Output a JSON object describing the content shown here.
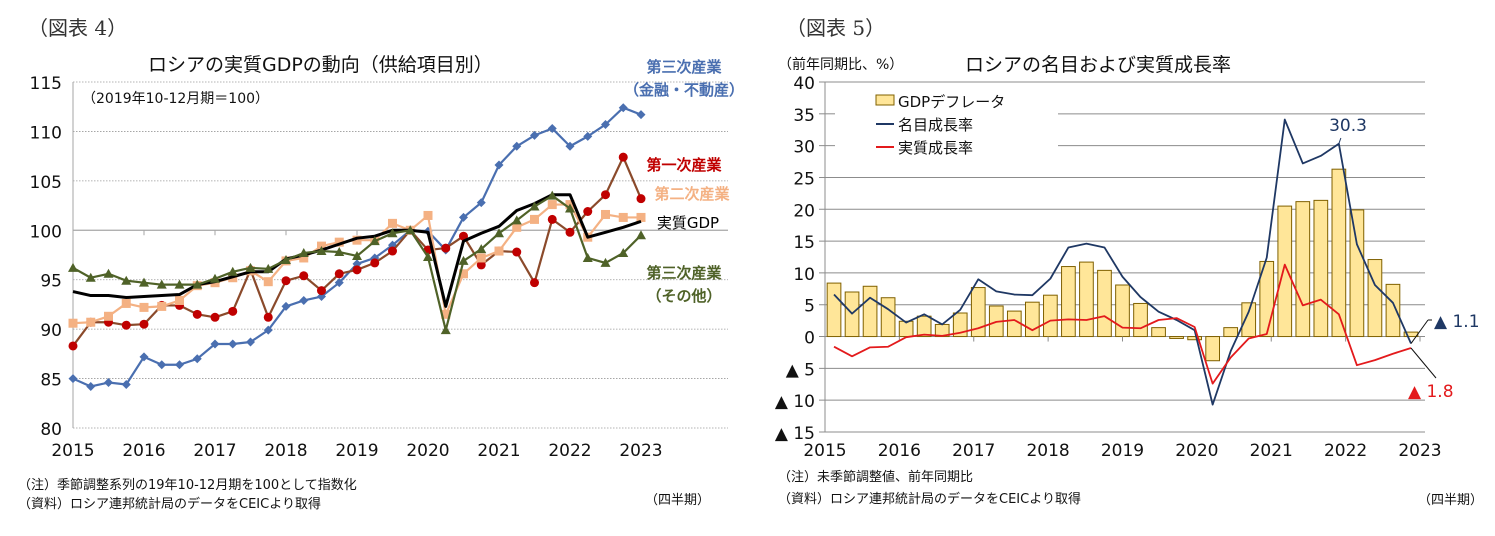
{
  "figures": [
    {
      "label": "（図表 4）",
      "notes": [
        "（注）季節調整系列の19年10-12月期を100として指数化",
        "（資料）ロシア連邦統計局のデータをCEICより取得"
      ],
      "period_label": "（四半期）"
    },
    {
      "label": "（図表 5）",
      "notes": [
        "（注）未季節調整値、前年同期比",
        "（資料）ロシア連邦統計局のデータをCEICより取得"
      ],
      "period_label": "（四半期）"
    }
  ],
  "chart_data": [
    {
      "type": "line",
      "title": "ロシアの実質GDPの動向（供給項目別）",
      "subtitle": "（2019年10-12月期＝100）",
      "xlabel": "",
      "ylabel": "",
      "ylim": [
        80,
        115
      ],
      "yticks": [
        80,
        85,
        90,
        95,
        100,
        105,
        110,
        115
      ],
      "xticks": [
        "2015",
        "2016",
        "2017",
        "2018",
        "2019",
        "2020",
        "2021",
        "2022",
        "2023"
      ],
      "x_start": "2015Q1",
      "x_end": "2023Q1",
      "grid": true,
      "series": [
        {
          "name": "第三次産業（金融・不動産）",
          "label_lines": [
            "第三次産業",
            "（金融・不動産）"
          ],
          "color": "#4a6fb0",
          "marker": "diamond",
          "values": [
            85.0,
            84.2,
            84.6,
            84.4,
            87.2,
            86.4,
            86.4,
            87.0,
            88.5,
            88.5,
            88.7,
            89.9,
            92.3,
            92.9,
            93.3,
            94.7,
            96.6,
            97.2,
            98.5,
            100.0,
            99.9,
            98.0,
            101.3,
            102.8,
            106.6,
            108.5,
            109.6,
            110.3,
            108.5,
            109.5,
            110.7,
            112.4,
            111.7
          ]
        },
        {
          "name": "第一次産業",
          "label_lines": [
            "第一次産業"
          ],
          "color": "#c00000",
          "line_color": "#8b4a2b",
          "marker": "circle",
          "values": [
            88.3,
            90.7,
            90.7,
            90.4,
            90.5,
            92.4,
            92.4,
            91.5,
            91.2,
            91.8,
            96.0,
            91.2,
            94.9,
            95.4,
            93.9,
            95.6,
            96.0,
            96.7,
            97.9,
            100.0,
            98.0,
            98.2,
            99.4,
            96.5,
            97.9,
            97.8,
            94.7,
            101.1,
            99.8,
            101.9,
            103.6,
            107.4,
            103.2
          ]
        },
        {
          "name": "第二次産業",
          "label_lines": [
            "第二次産業"
          ],
          "color": "#f4b183",
          "marker": "square",
          "values": [
            90.6,
            90.7,
            91.3,
            92.6,
            92.2,
            92.3,
            92.9,
            94.4,
            94.7,
            95.2,
            95.9,
            94.8,
            96.9,
            97.2,
            98.4,
            98.8,
            99.0,
            99.0,
            100.7,
            100.0,
            101.5,
            91.5,
            95.6,
            97.2,
            97.9,
            100.3,
            101.1,
            102.6,
            102.6,
            99.3,
            101.6,
            101.3,
            101.3
          ]
        },
        {
          "name": "実質GDP",
          "label_lines": [
            "実質GDP"
          ],
          "color": "#000000",
          "marker": "none",
          "values": [
            93.8,
            93.4,
            93.4,
            93.2,
            93.3,
            93.4,
            93.5,
            94.5,
            94.8,
            95.3,
            95.8,
            95.8,
            97.1,
            97.5,
            98.0,
            98.6,
            99.2,
            99.4,
            100.0,
            100.0,
            99.8,
            92.3,
            98.9,
            99.7,
            100.4,
            102.0,
            102.7,
            103.6,
            103.6,
            99.3,
            99.8,
            100.3,
            100.9
          ]
        },
        {
          "name": "第三次産業（その他）",
          "label_lines": [
            "第三次産業",
            "（その他）"
          ],
          "color": "#4f6228",
          "marker": "triangle",
          "values": [
            96.2,
            95.2,
            95.6,
            94.9,
            94.7,
            94.5,
            94.5,
            94.5,
            95.1,
            95.8,
            96.2,
            96.1,
            97.0,
            97.7,
            97.9,
            97.8,
            97.4,
            98.9,
            99.7,
            100.0,
            97.3,
            89.9,
            96.9,
            98.1,
            99.7,
            101.0,
            102.4,
            103.5,
            102.2,
            97.2,
            96.7,
            97.7,
            99.5
          ]
        }
      ]
    },
    {
      "type": "bar+line",
      "title": "ロシアの名目および実質成長率",
      "ylabel": "（前年同期比、%）",
      "ylim": [
        -15,
        40
      ],
      "yticks": [
        40,
        35,
        30,
        25,
        20,
        15,
        10,
        5,
        0,
        -5,
        -10,
        -15
      ],
      "ytick_labels": [
        "40",
        "35",
        "30",
        "25",
        "20",
        "15",
        "10",
        "5",
        "0",
        "▲ 5",
        "▲ 10",
        "▲ 15"
      ],
      "xticks": [
        "2015",
        "2016",
        "2017",
        "2018",
        "2019",
        "2020",
        "2021",
        "2022",
        "2023"
      ],
      "x_start": "2015Q1",
      "x_end": "2023Q1",
      "grid": true,
      "legend_position": "top-left",
      "bars": {
        "name": "GDPデフレータ",
        "color": "#ffe699",
        "edge": "#7f6000",
        "values": [
          8.4,
          7.0,
          7.9,
          6.1,
          2.4,
          3.2,
          1.9,
          3.7,
          7.7,
          4.8,
          4.0,
          5.4,
          6.5,
          11.0,
          11.7,
          10.4,
          8.1,
          5.2,
          1.4,
          -0.3,
          -0.5,
          -3.8,
          1.4,
          5.3,
          11.8,
          20.5,
          21.2,
          21.4,
          26.3,
          19.9,
          12.1,
          8.2,
          0.7
        ]
      },
      "series": [
        {
          "name": "名目成長率",
          "color": "#1f3864",
          "values": [
            6.6,
            3.6,
            6.1,
            4.3,
            2.2,
            3.5,
            1.9,
            4.2,
            9.0,
            7.1,
            6.6,
            6.5,
            9.1,
            14.0,
            14.6,
            14.0,
            9.4,
            6.2,
            3.9,
            2.6,
            1.0,
            -10.7,
            -2.3,
            3.9,
            12.4,
            34.1,
            27.2,
            28.4,
            30.3,
            14.5,
            8.1,
            5.3,
            -1.1
          ]
        },
        {
          "name": "実質成長率",
          "color": "#e31a1c",
          "values": [
            -1.6,
            -3.1,
            -1.7,
            -1.6,
            -0.1,
            0.3,
            0.1,
            0.6,
            1.3,
            2.3,
            2.6,
            1.0,
            2.5,
            2.7,
            2.6,
            3.2,
            1.4,
            1.3,
            2.6,
            2.9,
            1.5,
            -7.4,
            -3.3,
            -0.3,
            0.4,
            11.3,
            4.9,
            5.8,
            3.5,
            -4.5,
            -3.7,
            -2.7,
            -1.8
          ]
        }
      ],
      "annotations": [
        {
          "text": "30.3",
          "series": "名目成長率",
          "index": 28,
          "color": "#1f3864"
        },
        {
          "text": "▲ 1.1",
          "series": "名目成長率",
          "index": 32,
          "color": "#1f3864"
        },
        {
          "text": "▲ 1.8",
          "series": "実質成長率",
          "index": 32,
          "color": "#e31a1c"
        }
      ]
    }
  ]
}
